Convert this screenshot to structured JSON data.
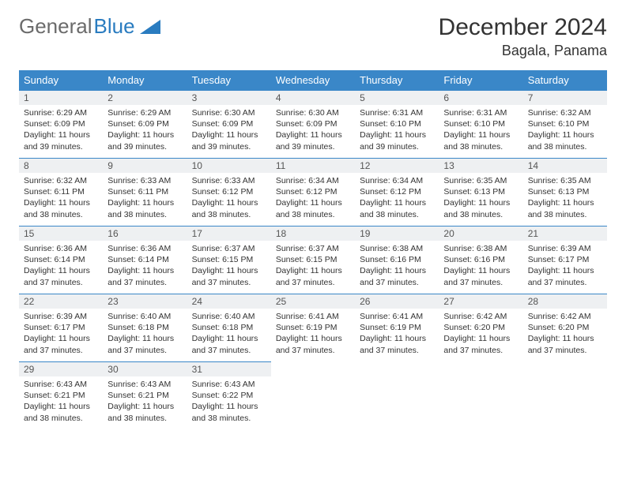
{
  "brand": {
    "part1": "General",
    "part2": "Blue"
  },
  "title": "December 2024",
  "location": "Bagala, Panama",
  "colors": {
    "header_bg": "#3a87c8",
    "header_text": "#ffffff",
    "daynum_bg": "#eef0f2",
    "cell_border": "#3a87c8",
    "brand_gray": "#6b6b6b",
    "brand_blue": "#2a7cc0"
  },
  "dayHeaders": [
    "Sunday",
    "Monday",
    "Tuesday",
    "Wednesday",
    "Thursday",
    "Friday",
    "Saturday"
  ],
  "startWeekday": 0,
  "daysInMonth": 31,
  "days": [
    {
      "n": 1,
      "sunrise": "6:29 AM",
      "sunset": "6:09 PM",
      "daylight": "11 hours and 39 minutes."
    },
    {
      "n": 2,
      "sunrise": "6:29 AM",
      "sunset": "6:09 PM",
      "daylight": "11 hours and 39 minutes."
    },
    {
      "n": 3,
      "sunrise": "6:30 AM",
      "sunset": "6:09 PM",
      "daylight": "11 hours and 39 minutes."
    },
    {
      "n": 4,
      "sunrise": "6:30 AM",
      "sunset": "6:09 PM",
      "daylight": "11 hours and 39 minutes."
    },
    {
      "n": 5,
      "sunrise": "6:31 AM",
      "sunset": "6:10 PM",
      "daylight": "11 hours and 39 minutes."
    },
    {
      "n": 6,
      "sunrise": "6:31 AM",
      "sunset": "6:10 PM",
      "daylight": "11 hours and 38 minutes."
    },
    {
      "n": 7,
      "sunrise": "6:32 AM",
      "sunset": "6:10 PM",
      "daylight": "11 hours and 38 minutes."
    },
    {
      "n": 8,
      "sunrise": "6:32 AM",
      "sunset": "6:11 PM",
      "daylight": "11 hours and 38 minutes."
    },
    {
      "n": 9,
      "sunrise": "6:33 AM",
      "sunset": "6:11 PM",
      "daylight": "11 hours and 38 minutes."
    },
    {
      "n": 10,
      "sunrise": "6:33 AM",
      "sunset": "6:12 PM",
      "daylight": "11 hours and 38 minutes."
    },
    {
      "n": 11,
      "sunrise": "6:34 AM",
      "sunset": "6:12 PM",
      "daylight": "11 hours and 38 minutes."
    },
    {
      "n": 12,
      "sunrise": "6:34 AM",
      "sunset": "6:12 PM",
      "daylight": "11 hours and 38 minutes."
    },
    {
      "n": 13,
      "sunrise": "6:35 AM",
      "sunset": "6:13 PM",
      "daylight": "11 hours and 38 minutes."
    },
    {
      "n": 14,
      "sunrise": "6:35 AM",
      "sunset": "6:13 PM",
      "daylight": "11 hours and 38 minutes."
    },
    {
      "n": 15,
      "sunrise": "6:36 AM",
      "sunset": "6:14 PM",
      "daylight": "11 hours and 37 minutes."
    },
    {
      "n": 16,
      "sunrise": "6:36 AM",
      "sunset": "6:14 PM",
      "daylight": "11 hours and 37 minutes."
    },
    {
      "n": 17,
      "sunrise": "6:37 AM",
      "sunset": "6:15 PM",
      "daylight": "11 hours and 37 minutes."
    },
    {
      "n": 18,
      "sunrise": "6:37 AM",
      "sunset": "6:15 PM",
      "daylight": "11 hours and 37 minutes."
    },
    {
      "n": 19,
      "sunrise": "6:38 AM",
      "sunset": "6:16 PM",
      "daylight": "11 hours and 37 minutes."
    },
    {
      "n": 20,
      "sunrise": "6:38 AM",
      "sunset": "6:16 PM",
      "daylight": "11 hours and 37 minutes."
    },
    {
      "n": 21,
      "sunrise": "6:39 AM",
      "sunset": "6:17 PM",
      "daylight": "11 hours and 37 minutes."
    },
    {
      "n": 22,
      "sunrise": "6:39 AM",
      "sunset": "6:17 PM",
      "daylight": "11 hours and 37 minutes."
    },
    {
      "n": 23,
      "sunrise": "6:40 AM",
      "sunset": "6:18 PM",
      "daylight": "11 hours and 37 minutes."
    },
    {
      "n": 24,
      "sunrise": "6:40 AM",
      "sunset": "6:18 PM",
      "daylight": "11 hours and 37 minutes."
    },
    {
      "n": 25,
      "sunrise": "6:41 AM",
      "sunset": "6:19 PM",
      "daylight": "11 hours and 37 minutes."
    },
    {
      "n": 26,
      "sunrise": "6:41 AM",
      "sunset": "6:19 PM",
      "daylight": "11 hours and 37 minutes."
    },
    {
      "n": 27,
      "sunrise": "6:42 AM",
      "sunset": "6:20 PM",
      "daylight": "11 hours and 37 minutes."
    },
    {
      "n": 28,
      "sunrise": "6:42 AM",
      "sunset": "6:20 PM",
      "daylight": "11 hours and 37 minutes."
    },
    {
      "n": 29,
      "sunrise": "6:43 AM",
      "sunset": "6:21 PM",
      "daylight": "11 hours and 38 minutes."
    },
    {
      "n": 30,
      "sunrise": "6:43 AM",
      "sunset": "6:21 PM",
      "daylight": "11 hours and 38 minutes."
    },
    {
      "n": 31,
      "sunrise": "6:43 AM",
      "sunset": "6:22 PM",
      "daylight": "11 hours and 38 minutes."
    }
  ],
  "labels": {
    "sunrise": "Sunrise:",
    "sunset": "Sunset:",
    "daylight": "Daylight:"
  }
}
